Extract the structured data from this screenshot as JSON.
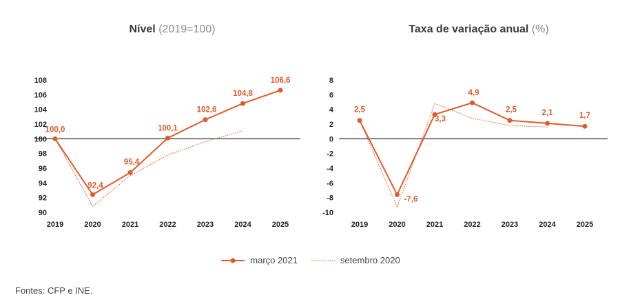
{
  "titles": {
    "left_main": "Nível",
    "left_sub": "(2019=100)",
    "right_main": "Taxa de variação anual",
    "right_sub": "(%)"
  },
  "legend": {
    "series1": "março 2021",
    "series2": "setembro 2020"
  },
  "source": "Fontes: CFP e INE.",
  "colors": {
    "accent": "#e05a2b",
    "dotted": "#e05a2b",
    "axis": "#111111",
    "text": "#333333"
  },
  "chart_data": [
    {
      "type": "line",
      "title": "Nível (2019=100)",
      "categories": [
        "2019",
        "2020",
        "2021",
        "2022",
        "2023",
        "2024",
        "2025"
      ],
      "ylim": [
        90,
        108
      ],
      "yticks": [
        "108",
        "106",
        "104",
        "102",
        "100",
        "98",
        "96",
        "94",
        "92",
        "90"
      ],
      "baseline": 100,
      "series": [
        {
          "name": "março 2021",
          "style": "solid-markers",
          "values": [
            100.0,
            92.4,
            95.4,
            100.1,
            102.6,
            104.8,
            106.6
          ],
          "labels": [
            "100,0",
            "92,4",
            "95,4",
            "100,1",
            "102,6",
            "104,8",
            "106,6"
          ]
        },
        {
          "name": "setembro 2020",
          "style": "dotted",
          "values": [
            100.0,
            90.8,
            95.0,
            97.8,
            99.6,
            101.1,
            null
          ]
        }
      ]
    },
    {
      "type": "line",
      "title": "Taxa de variação anual (%)",
      "categories": [
        "2019",
        "2020",
        "2021",
        "2022",
        "2023",
        "2024",
        "2025"
      ],
      "ylim": [
        -10,
        8
      ],
      "yticks": [
        "8",
        "6",
        "4",
        "2",
        "0",
        "-2",
        "-4",
        "-6",
        "-8",
        "-10"
      ],
      "baseline": 0,
      "series": [
        {
          "name": "março 2021",
          "style": "solid-markers",
          "values": [
            2.5,
            -7.6,
            3.3,
            4.9,
            2.5,
            2.1,
            1.7
          ],
          "labels": [
            "2,5",
            "-7,6",
            "3,3",
            "4,9",
            "2,5",
            "2,1",
            "1,7"
          ]
        },
        {
          "name": "setembro 2020",
          "style": "dotted",
          "values": [
            2.5,
            -9.3,
            4.8,
            2.8,
            1.8,
            1.6,
            null
          ]
        }
      ]
    }
  ]
}
